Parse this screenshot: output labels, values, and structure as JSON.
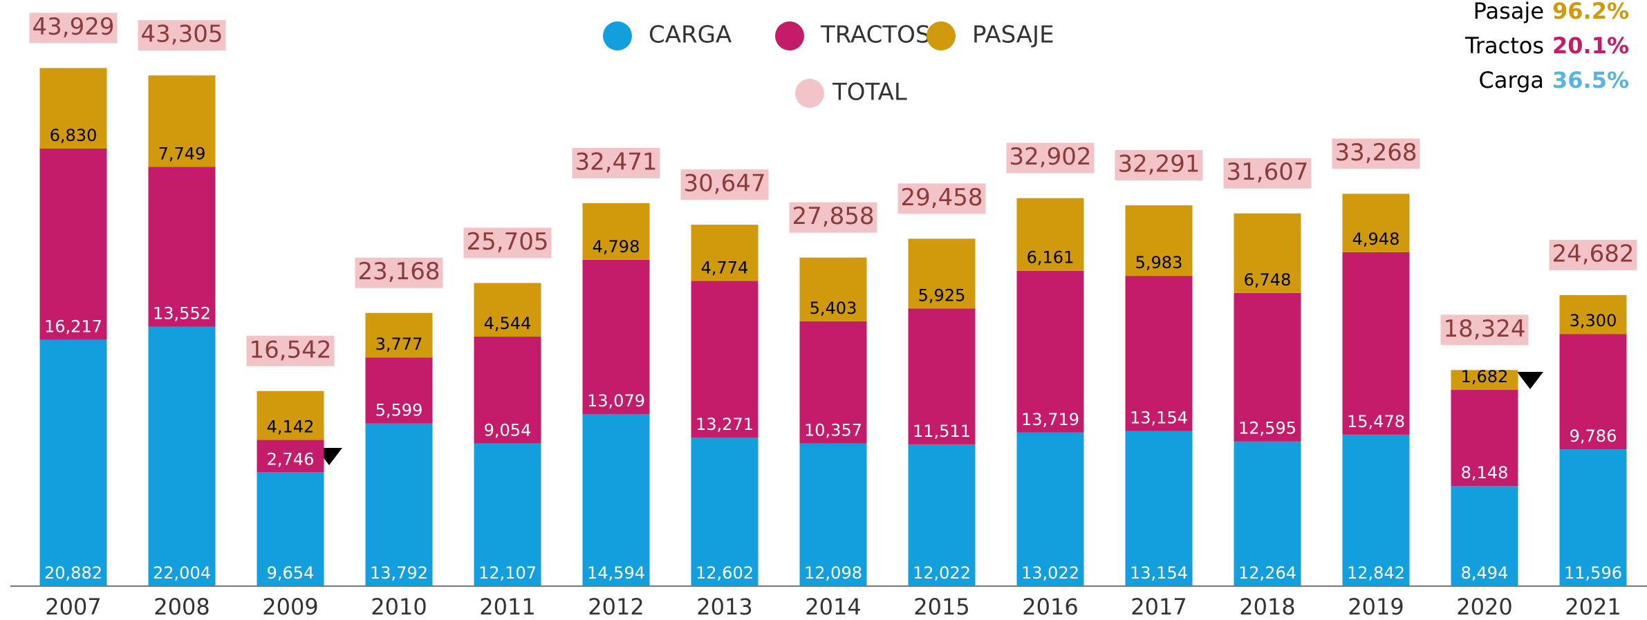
{
  "chart_data": {
    "type": "stacked_bar",
    "categories": [
      "2007",
      "2008",
      "2009",
      "2010",
      "2011",
      "2012",
      "2013",
      "2014",
      "2015",
      "2016",
      "2017",
      "2018",
      "2019",
      "2020",
      "2021"
    ],
    "series": [
      {
        "name": "CARGA",
        "color": "#139fde",
        "label_color": "#ffffff",
        "values": [
          20882,
          22004,
          9654,
          13792,
          12107,
          14594,
          12602,
          12098,
          12022,
          13022,
          13154,
          12264,
          12842,
          8494,
          11596
        ],
        "value_labels": [
          "20,882",
          "22,004",
          "9,654",
          "13,792",
          "12,107",
          "14,594",
          "12,602",
          "12,098",
          "12,022",
          "13,022",
          "13,154",
          "12,264",
          "12,842",
          "8,494",
          "11,596"
        ]
      },
      {
        "name": "TRACTOS",
        "color": "#c51b6b",
        "label_color": "#ffffff",
        "values": [
          16217,
          13552,
          2746,
          5599,
          9054,
          13079,
          13271,
          10357,
          11511,
          13719,
          13154,
          12595,
          15478,
          8148,
          9786
        ],
        "value_labels": [
          "16,217",
          "13,552",
          "2,746",
          "5,599",
          "9,054",
          "13,079",
          "13,271",
          "10,357",
          "11,511",
          "13,719",
          "13,154",
          "12,595",
          "15,478",
          "8,148",
          "9,786"
        ]
      },
      {
        "name": "PASAJE",
        "color": "#d09a0c",
        "label_color": "#000000",
        "values": [
          6830,
          7749,
          4142,
          3777,
          4544,
          4798,
          4774,
          5403,
          5925,
          6161,
          5983,
          6748,
          4948,
          1682,
          3300
        ],
        "value_labels": [
          "6,830",
          "7,749",
          "4,142",
          "3,777",
          "4,544",
          "4,798",
          "4,774",
          "5,403",
          "5,925",
          "6,161",
          "5,983",
          "6,748",
          "4,948",
          "1,682",
          "3,300"
        ]
      }
    ],
    "totals": {
      "name": "TOTAL",
      "color": "#f2c4c8",
      "values": [
        43929,
        43305,
        16542,
        23168,
        25705,
        32471,
        30647,
        27858,
        29458,
        32902,
        32291,
        31607,
        33268,
        18324,
        24682
      ],
      "value_labels": [
        "43,929",
        "43,305",
        "16,542",
        "23,168",
        "25,705",
        "32,471",
        "30,647",
        "27,858",
        "29,458",
        "32,902",
        "32,291",
        "31,607",
        "33,268",
        "18,324",
        "24,682"
      ]
    },
    "annotations": [
      {
        "name": "Pasaje",
        "text": "96.2%",
        "color": "#d09a0c"
      },
      {
        "name": "Tractos",
        "text": "20.1%",
        "color": "#c51b6b"
      },
      {
        "name": "Carga",
        "text": "36.5%",
        "color": "#5ab4e0"
      }
    ],
    "ylim": [
      0,
      49700
    ]
  }
}
